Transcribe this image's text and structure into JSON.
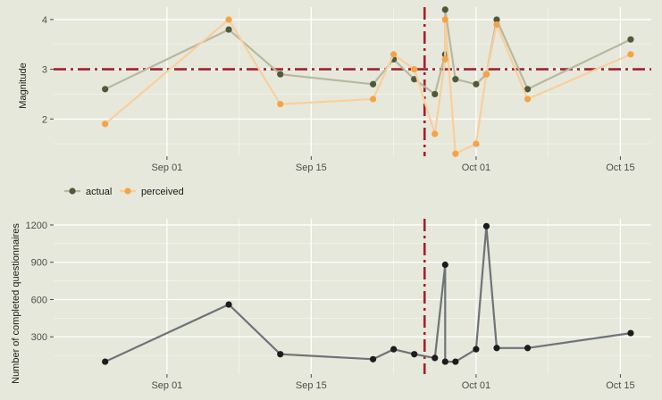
{
  "chart_data": [
    {
      "type": "line",
      "title": "",
      "xlabel": "",
      "ylabel": "Magnitude",
      "x_ticks": [
        "Sep 01",
        "Sep 15",
        "Oct 01",
        "Oct 15"
      ],
      "y_ticks": [
        "2",
        "3",
        "4"
      ],
      "ylim": [
        1.25,
        4.25
      ],
      "grid": true,
      "legend": "bottom-left",
      "x": [
        "2021-08-26",
        "2021-09-07",
        "2021-09-12",
        "2021-09-21",
        "2021-09-23",
        "2021-09-25",
        "2021-09-27",
        "2021-09-28",
        "2021-09-28",
        "2021-09-29",
        "2021-10-01",
        "2021-10-02",
        "2021-10-03",
        "2021-10-06",
        "2021-10-16"
      ],
      "series": [
        {
          "name": "actual",
          "color": "#4f5a37",
          "line_color": "#b8b8a0",
          "values": [
            2.6,
            3.8,
            2.9,
            2.7,
            3.2,
            2.8,
            2.5,
            3.3,
            4.2,
            2.8,
            2.7,
            2.9,
            4.0,
            2.6,
            3.6
          ]
        },
        {
          "name": "perceived",
          "color": "#f5a347",
          "line_color": "#f9cf9c",
          "values": [
            1.9,
            4.0,
            2.3,
            2.4,
            3.3,
            3.0,
            1.7,
            3.2,
            4.0,
            1.3,
            1.5,
            2.9,
            3.9,
            2.4,
            3.3
          ]
        }
      ],
      "reference_lines": {
        "horizontal_y": 3.0,
        "vertical_x": "2021-09-26",
        "color": "#a3212e"
      }
    },
    {
      "type": "line",
      "title": "",
      "xlabel": "",
      "ylabel": "Number of completed questionnaires",
      "x_ticks": [
        "Sep 01",
        "Sep 15",
        "Oct 01",
        "Oct 15"
      ],
      "y_ticks": [
        "300",
        "600",
        "900",
        "1200"
      ],
      "ylim": [
        0,
        1250
      ],
      "grid": true,
      "x": [
        "2021-08-26",
        "2021-09-07",
        "2021-09-12",
        "2021-09-21",
        "2021-09-23",
        "2021-09-25",
        "2021-09-27",
        "2021-09-28",
        "2021-09-28",
        "2021-09-29",
        "2021-10-01",
        "2021-10-02",
        "2021-10-03",
        "2021-10-06",
        "2021-10-16"
      ],
      "series": [
        {
          "color": "#1c1c1c",
          "line_color": "#6d7378",
          "values": [
            100,
            560,
            160,
            120,
            200,
            160,
            130,
            880,
            100,
            100,
            200,
            1190,
            210,
            210,
            330
          ]
        }
      ],
      "reference_lines": {
        "vertical_x": "2021-09-26",
        "color": "#a3212e"
      }
    }
  ],
  "colors": {
    "panel_background": "#e6e8db",
    "grid": "#ffffff"
  }
}
